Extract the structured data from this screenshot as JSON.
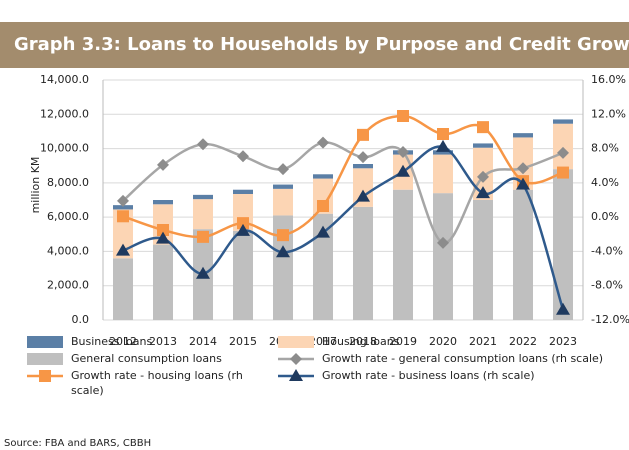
{
  "chart_data": {
    "type": "bar",
    "title": "Graph 3.3: Loans to Households by Purpose and Credit Growth",
    "ylabel": "million KM",
    "source": "Source: FBA and BARS, CBBH",
    "categories": [
      "2012",
      "2013",
      "2014",
      "2015",
      "2016",
      "2017",
      "2018",
      "2019",
      "2020",
      "2021",
      "2022",
      "2023"
    ],
    "series": [
      {
        "name": "Business loans",
        "type": "bar",
        "color": "#5b7fa6",
        "values": [
          250,
          250,
          250,
          250,
          250,
          250,
          250,
          250,
          250,
          250,
          250,
          250
        ]
      },
      {
        "name": "Housing loans",
        "type": "bar",
        "color": "#fcd5b4",
        "values": [
          2850,
          2350,
          1750,
          2150,
          1550,
          2050,
          2250,
          2050,
          2250,
          3050,
          3050,
          2650
        ]
      },
      {
        "name": "General consumption loans",
        "type": "bar",
        "color": "#bfbfbf",
        "values": [
          3600,
          4400,
          5300,
          5200,
          6100,
          6200,
          6600,
          7600,
          7400,
          7000,
          7600,
          8800
        ]
      },
      {
        "name": "Growth rate - general consumption loans (rh scale)",
        "type": "line",
        "axis": "y2",
        "marker": "diamond",
        "color": "#a6a6a6",
        "values": [
          1.9,
          6.1,
          8.5,
          7.1,
          5.6,
          8.7,
          7.0,
          7.6,
          -3.0,
          4.7,
          5.7,
          7.5
        ]
      },
      {
        "name": "Growth rate - housing loans (rh scale)",
        "type": "line",
        "axis": "y2",
        "marker": "square",
        "color": "#f79646",
        "values": [
          0.1,
          -1.5,
          -2.3,
          -0.7,
          -2.1,
          1.3,
          9.6,
          11.8,
          9.7,
          10.5,
          4.2,
          5.2
        ]
      },
      {
        "name": "Growth rate - business loans (rh scale)",
        "type": "line",
        "axis": "y2",
        "marker": "triangle",
        "color": "#2f5a8c",
        "values": [
          -3.9,
          -2.5,
          -6.6,
          -1.6,
          -4.1,
          -1.8,
          2.4,
          5.3,
          8.2,
          2.8,
          3.8,
          -10.8
        ]
      }
    ],
    "ylim": [
      0,
      14000
    ],
    "yticks": [
      {
        "value": 0,
        "label": "0.0"
      },
      {
        "value": 2000,
        "label": "2,000.0"
      },
      {
        "value": 4000,
        "label": "4,000.0"
      },
      {
        "value": 6000,
        "label": "6,000.0"
      },
      {
        "value": 8000,
        "label": "8,000.0"
      },
      {
        "value": 10000,
        "label": "10,000.0"
      },
      {
        "value": 12000,
        "label": "12,000.0"
      },
      {
        "value": 14000,
        "label": "14,000.0"
      }
    ],
    "y2lim": [
      -12,
      16
    ],
    "y2ticks": [
      {
        "value": -12,
        "label": "-12.0%"
      },
      {
        "value": -8,
        "label": "-8.0%"
      },
      {
        "value": -4,
        "label": "-4.0%"
      },
      {
        "value": 0,
        "label": "0.0%"
      },
      {
        "value": 4,
        "label": "4.0%"
      },
      {
        "value": 8,
        "label": "8.0%"
      },
      {
        "value": 12,
        "label": "12.0%"
      },
      {
        "value": 16,
        "label": "16.0%"
      }
    ],
    "grid": true
  }
}
